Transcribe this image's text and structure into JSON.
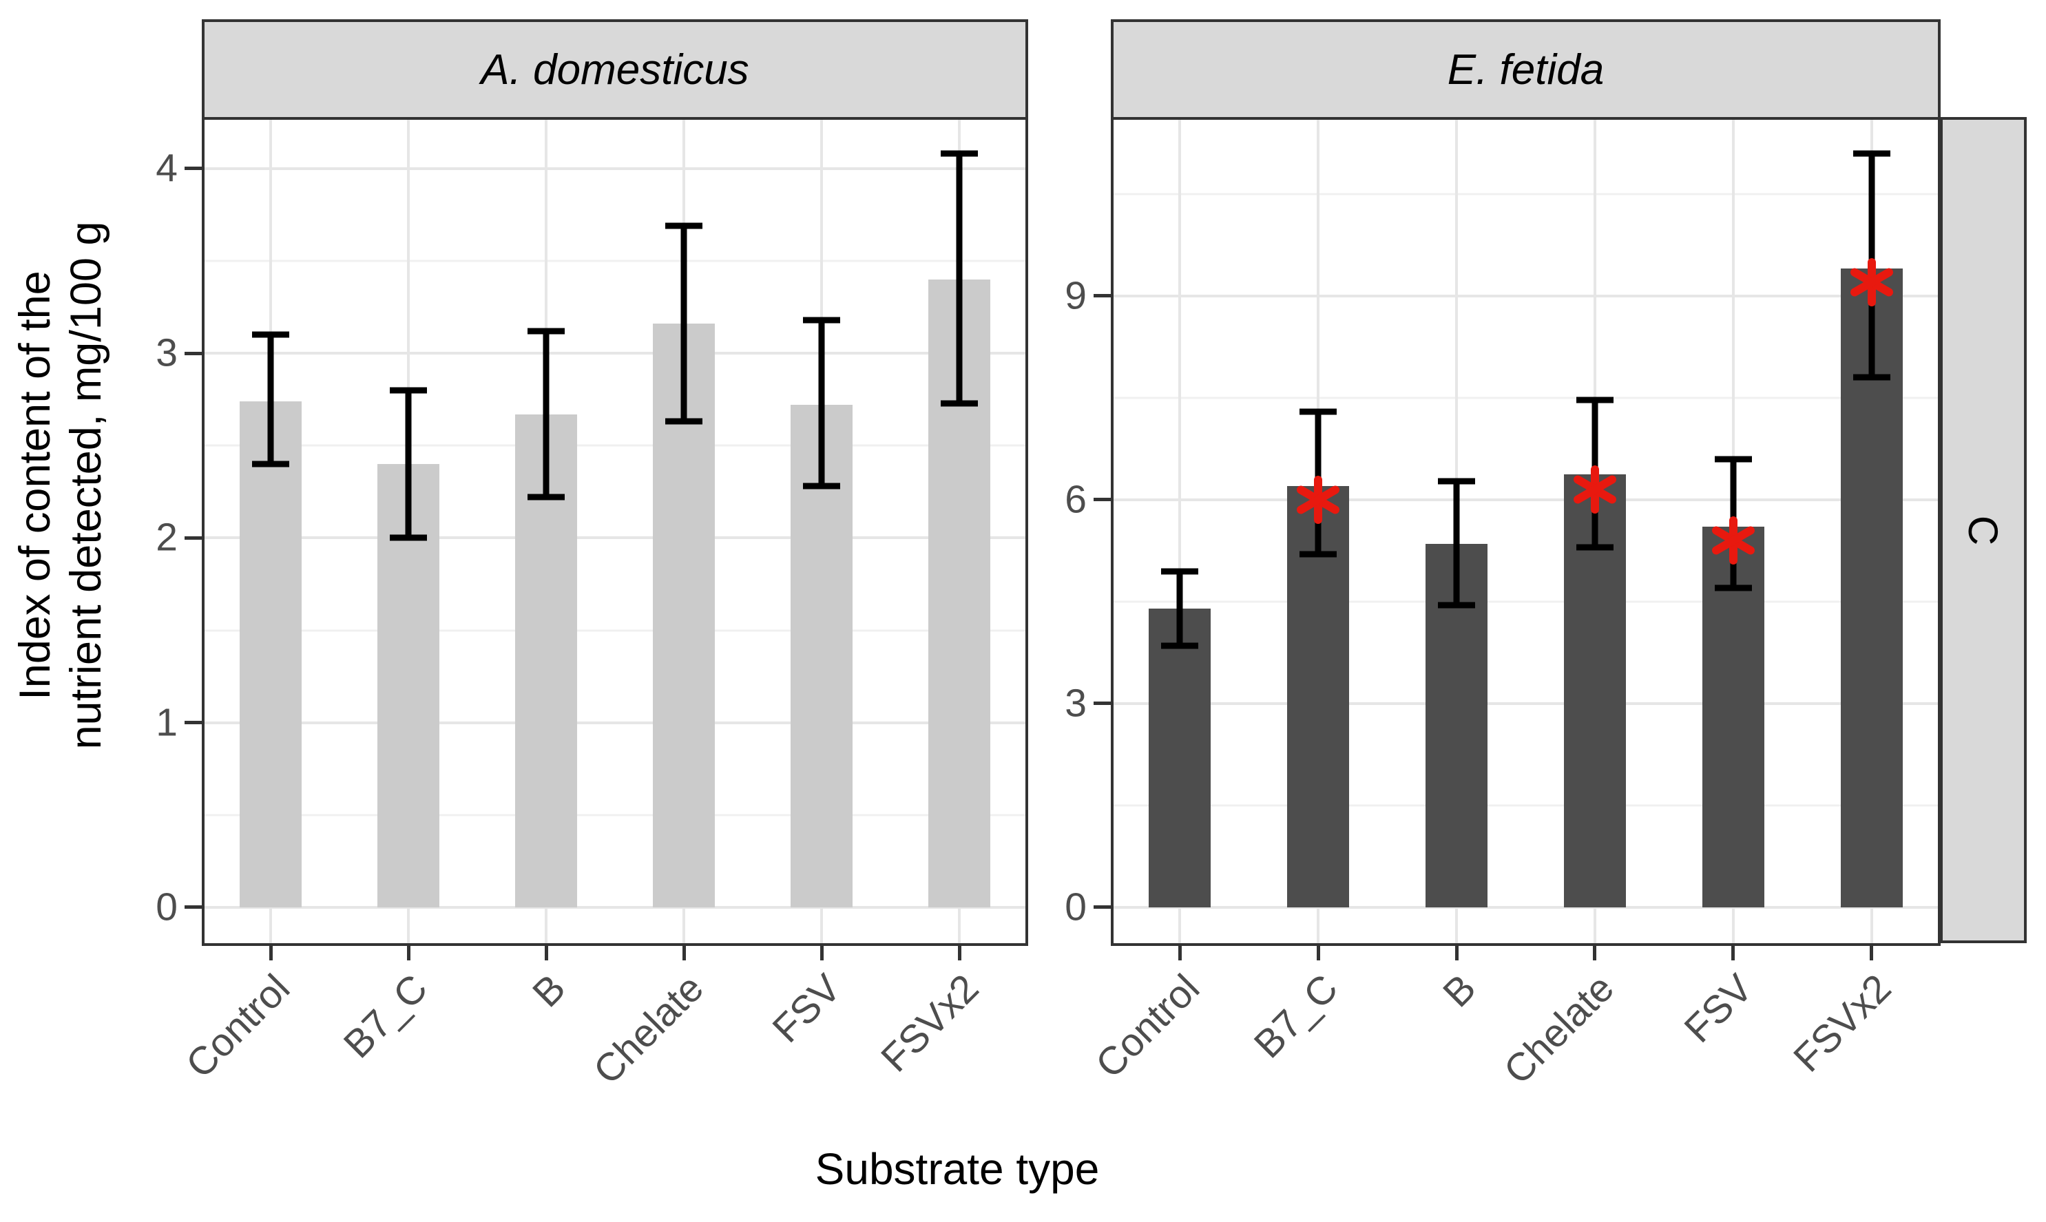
{
  "chart_data": {
    "type": "bar",
    "title": "",
    "xlabel": "Substrate type",
    "ylabel": "Index of content of the nutrient detected, mg/100 g",
    "ylabel_lines": [
      "Index of content of the",
      "nutrient detected, mg/100 g"
    ],
    "categories": [
      "Control",
      "B7_C",
      "B",
      "Chelate",
      "FSV",
      "FSVx2"
    ],
    "facet_row_label": "C",
    "legend": false,
    "grid": true,
    "error_bar_color": "#000000",
    "sig_marker": "*",
    "sig_color": "#e8190f",
    "panels": [
      {
        "facet": "A. domesticus",
        "bar_color": "#cbcbcb",
        "ylim": [
          -0.194,
          4.279
        ],
        "yticks": [
          0,
          1,
          2,
          3,
          4
        ],
        "values": [
          2.74,
          2.4,
          2.67,
          3.16,
          2.72,
          3.4
        ],
        "err_low": [
          2.4,
          2.0,
          2.22,
          2.63,
          2.28,
          2.73
        ],
        "err_high": [
          3.1,
          2.8,
          3.12,
          3.69,
          3.18,
          4.08
        ],
        "sig": [
          null,
          null,
          null,
          null,
          null,
          null
        ]
      },
      {
        "facet": "E. fetida",
        "bar_color": "#4d4d4d",
        "ylim": [
          -0.527,
          11.634
        ],
        "yticks": [
          0,
          3,
          6,
          9
        ],
        "values": [
          4.4,
          6.2,
          5.35,
          6.37,
          5.6,
          9.4
        ],
        "err_low": [
          3.85,
          5.2,
          4.45,
          5.3,
          4.7,
          7.8
        ],
        "err_high": [
          4.95,
          7.3,
          6.27,
          7.47,
          6.6,
          11.1
        ],
        "sig": [
          null,
          6.0,
          null,
          6.15,
          5.4,
          9.2
        ]
      }
    ]
  },
  "colors": {
    "panel_background": "#ffffff",
    "panel_border": "#333333",
    "strip_background": "#d9d9d9",
    "grid_major": "#e6e6e6",
    "grid_minor": "#f0f0f0",
    "tick_mark": "#333333",
    "tick_label": "#4d4d4d",
    "text": "#000000"
  }
}
